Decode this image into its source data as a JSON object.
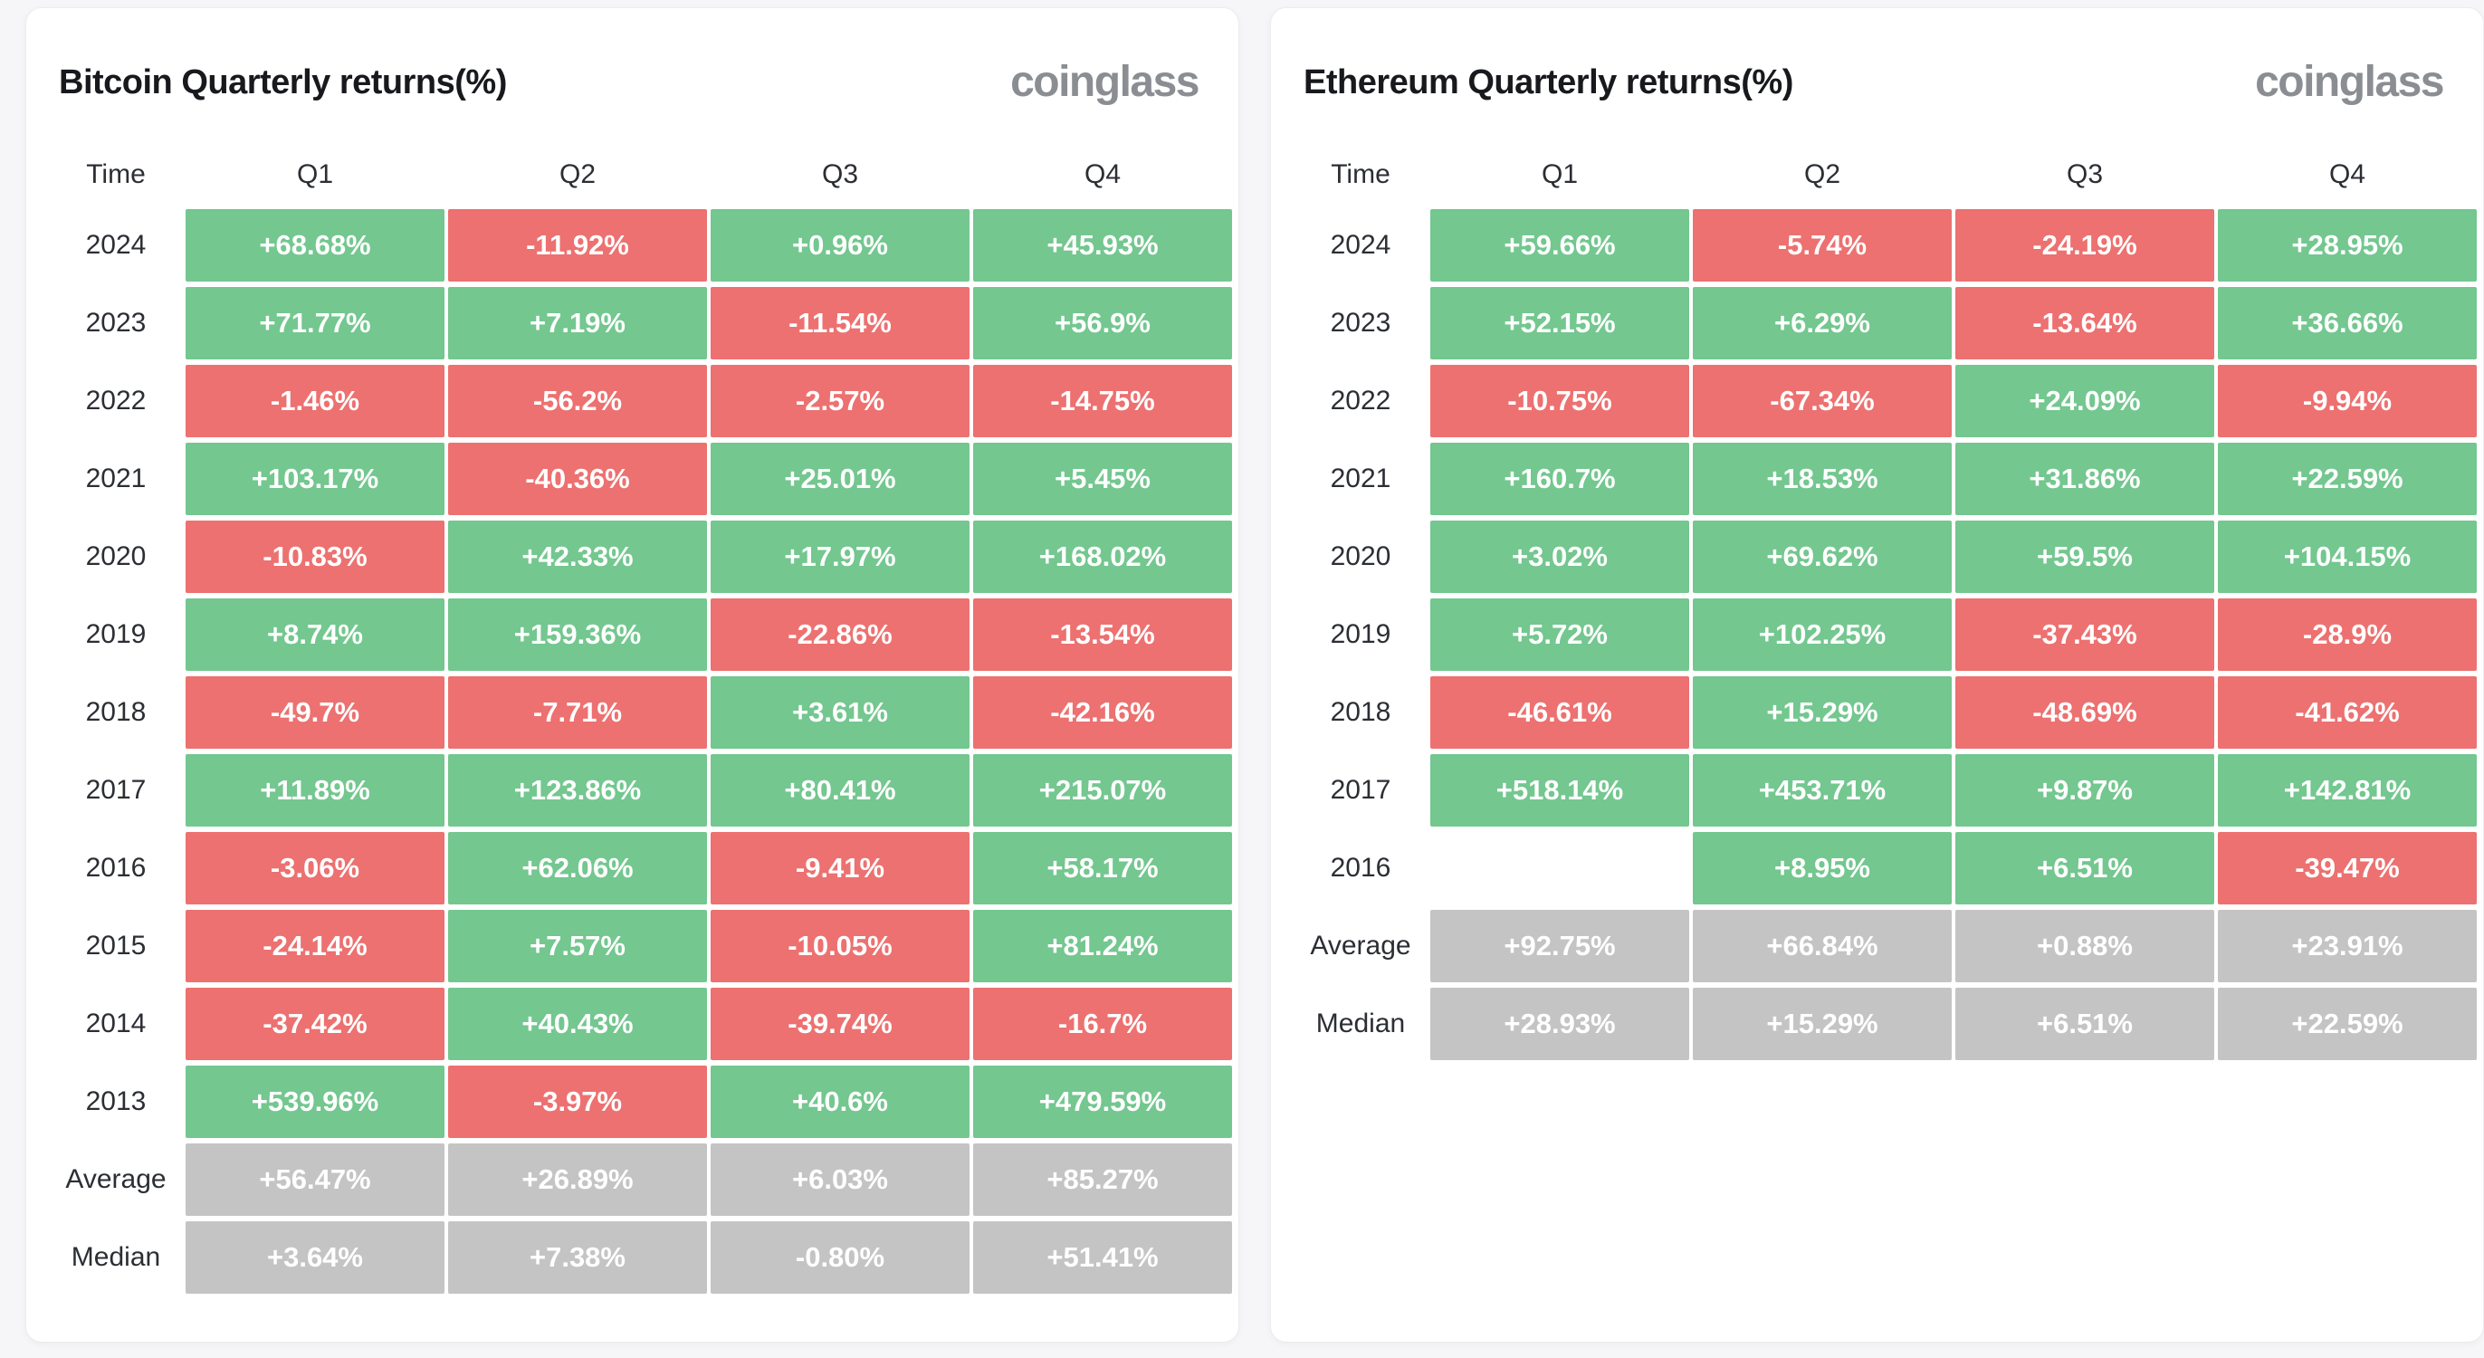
{
  "brand": "coinglass",
  "colors": {
    "positive": "#73c78f",
    "negative": "#ec7170",
    "neutral": "#c4c4c5",
    "page_bg": "#f6f6f8",
    "card_bg": "#ffffff",
    "title_text": "#17191d",
    "label_text": "#2b2e33",
    "logo_gray": "#8a8e92"
  },
  "chart_data": [
    {
      "type": "heatmap",
      "title": "Bitcoin Quarterly returns(%)",
      "columns": [
        "Time",
        "Q1",
        "Q2",
        "Q3",
        "Q4"
      ],
      "rows": [
        {
          "label": "2024",
          "values": [
            "+68.68%",
            "-11.92%",
            "+0.96%",
            "+45.93%"
          ]
        },
        {
          "label": "2023",
          "values": [
            "+71.77%",
            "+7.19%",
            "-11.54%",
            "+56.9%"
          ]
        },
        {
          "label": "2022",
          "values": [
            "-1.46%",
            "-56.2%",
            "-2.57%",
            "-14.75%"
          ]
        },
        {
          "label": "2021",
          "values": [
            "+103.17%",
            "-40.36%",
            "+25.01%",
            "+5.45%"
          ]
        },
        {
          "label": "2020",
          "values": [
            "-10.83%",
            "+42.33%",
            "+17.97%",
            "+168.02%"
          ]
        },
        {
          "label": "2019",
          "values": [
            "+8.74%",
            "+159.36%",
            "-22.86%",
            "-13.54%"
          ]
        },
        {
          "label": "2018",
          "values": [
            "-49.7%",
            "-7.71%",
            "+3.61%",
            "-42.16%"
          ]
        },
        {
          "label": "2017",
          "values": [
            "+11.89%",
            "+123.86%",
            "+80.41%",
            "+215.07%"
          ]
        },
        {
          "label": "2016",
          "values": [
            "-3.06%",
            "+62.06%",
            "-9.41%",
            "+58.17%"
          ]
        },
        {
          "label": "2015",
          "values": [
            "-24.14%",
            "+7.57%",
            "-10.05%",
            "+81.24%"
          ]
        },
        {
          "label": "2014",
          "values": [
            "-37.42%",
            "+40.43%",
            "-39.74%",
            "-16.7%"
          ]
        },
        {
          "label": "2013",
          "values": [
            "+539.96%",
            "-3.97%",
            "+40.6%",
            "+479.59%"
          ]
        },
        {
          "label": "Average",
          "summary": true,
          "values": [
            "+56.47%",
            "+26.89%",
            "+6.03%",
            "+85.27%"
          ]
        },
        {
          "label": "Median",
          "summary": true,
          "values": [
            "+3.64%",
            "+7.38%",
            "-0.80%",
            "+51.41%"
          ]
        }
      ]
    },
    {
      "type": "heatmap",
      "title": "Ethereum Quarterly returns(%)",
      "columns": [
        "Time",
        "Q1",
        "Q2",
        "Q3",
        "Q4"
      ],
      "rows": [
        {
          "label": "2024",
          "values": [
            "+59.66%",
            "-5.74%",
            "-24.19%",
            "+28.95%"
          ]
        },
        {
          "label": "2023",
          "values": [
            "+52.15%",
            "+6.29%",
            "-13.64%",
            "+36.66%"
          ]
        },
        {
          "label": "2022",
          "values": [
            "-10.75%",
            "-67.34%",
            "+24.09%",
            "-9.94%"
          ]
        },
        {
          "label": "2021",
          "values": [
            "+160.7%",
            "+18.53%",
            "+31.86%",
            "+22.59%"
          ]
        },
        {
          "label": "2020",
          "values": [
            "+3.02%",
            "+69.62%",
            "+59.5%",
            "+104.15%"
          ]
        },
        {
          "label": "2019",
          "values": [
            "+5.72%",
            "+102.25%",
            "-37.43%",
            "-28.9%"
          ]
        },
        {
          "label": "2018",
          "values": [
            "-46.61%",
            "+15.29%",
            "-48.69%",
            "-41.62%"
          ]
        },
        {
          "label": "2017",
          "values": [
            "+518.14%",
            "+453.71%",
            "+9.87%",
            "+142.81%"
          ]
        },
        {
          "label": "2016",
          "values": [
            "",
            "+8.95%",
            "+6.51%",
            "-39.47%"
          ]
        },
        {
          "label": "Average",
          "summary": true,
          "values": [
            "+92.75%",
            "+66.84%",
            "+0.88%",
            "+23.91%"
          ]
        },
        {
          "label": "Median",
          "summary": true,
          "values": [
            "+28.93%",
            "+15.29%",
            "+6.51%",
            "+22.59%"
          ]
        }
      ]
    }
  ]
}
